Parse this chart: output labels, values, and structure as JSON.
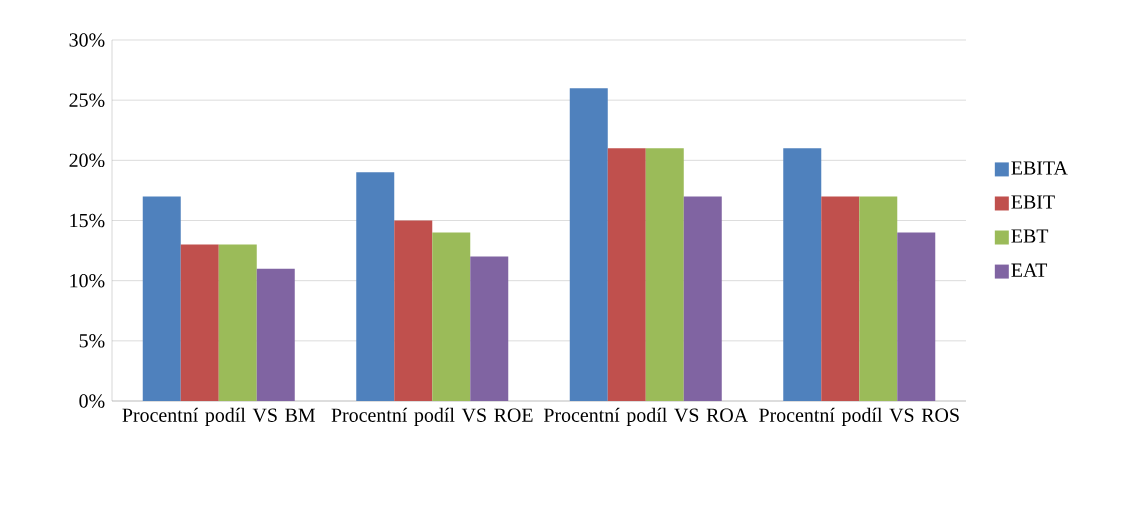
{
  "chart_data": {
    "type": "bar",
    "categories": [
      "Procentní podíl VS BM",
      "Procentní podíl VS ROE",
      "Procentní podíl VS ROA",
      "Procentní podíl VS ROS"
    ],
    "series": [
      {
        "name": "EBITA",
        "color": "#4f81bd",
        "values": [
          17,
          19,
          26,
          21
        ]
      },
      {
        "name": "EBIT",
        "color": "#c0504d",
        "values": [
          13,
          15,
          21,
          17
        ]
      },
      {
        "name": "EBT",
        "color": "#9bbb59",
        "values": [
          13,
          14,
          21,
          17
        ]
      },
      {
        "name": "EAT",
        "color": "#8064a2",
        "values": [
          11,
          12,
          17,
          14
        ]
      }
    ],
    "ylim": [
      0,
      30
    ],
    "yticks": [
      {
        "value": 0,
        "label": "0%"
      },
      {
        "value": 5,
        "label": "5%"
      },
      {
        "value": 10,
        "label": "10%"
      },
      {
        "value": 15,
        "label": "15%"
      },
      {
        "value": 20,
        "label": "20%"
      },
      {
        "value": 25,
        "label": "25%"
      },
      {
        "value": 30,
        "label": "30%"
      }
    ],
    "grid": "y",
    "legend": "right"
  }
}
